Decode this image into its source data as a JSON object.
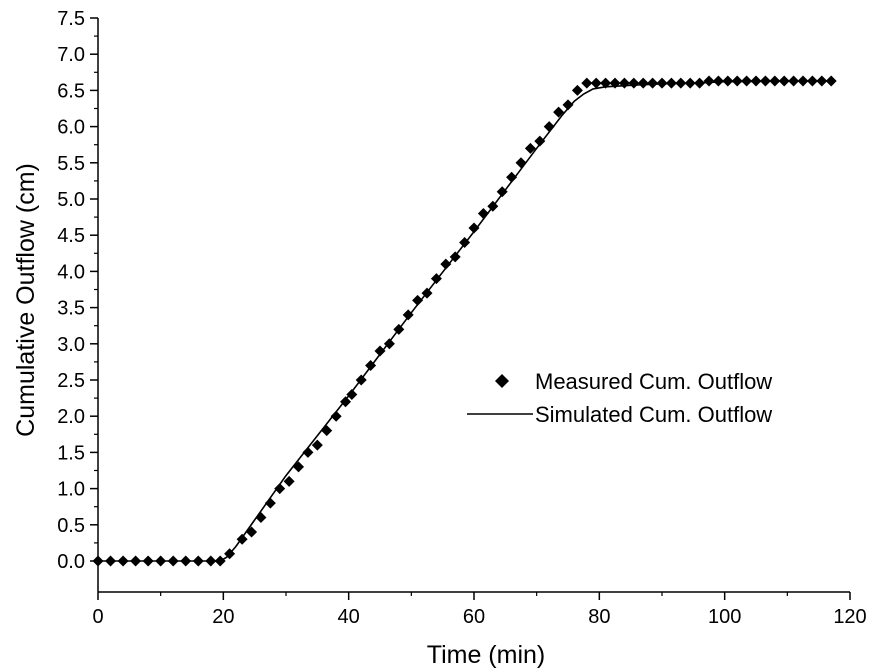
{
  "chart_data": {
    "type": "scatter",
    "title": "",
    "xlabel": "Time (min)",
    "ylabel": "Cumulative Outflow (cm)",
    "xlim": [
      0,
      120
    ],
    "ylim": [
      0,
      7.5
    ],
    "x_ticks": [
      0,
      20,
      40,
      60,
      80,
      100,
      120
    ],
    "x_tick_labels": [
      "0",
      "20",
      "40",
      "60",
      "80",
      "100",
      "120"
    ],
    "y_ticks": [
      0,
      0.5,
      1,
      1.5,
      2,
      2.5,
      3,
      3.5,
      4,
      4.5,
      5,
      5.5,
      6,
      6.5,
      7,
      7.5
    ],
    "y_tick_labels": [
      "0.0",
      "0.5",
      "1.0",
      "1.5",
      "2.0",
      "2.5",
      "3.0",
      "3.5",
      "4.0",
      "4.5",
      "5.0",
      "5.5",
      "6.0",
      "6.5",
      "7.0",
      "7.5"
    ],
    "grid": false,
    "legend_position": "right-center",
    "series": [
      {
        "name": "Measured Cum. Outflow",
        "type": "scatter",
        "marker": "diamond",
        "color": "#000000",
        "points": [
          [
            0,
            0
          ],
          [
            2,
            0
          ],
          [
            4,
            0
          ],
          [
            6,
            0
          ],
          [
            8,
            0
          ],
          [
            10,
            0
          ],
          [
            12,
            0
          ],
          [
            14,
            0
          ],
          [
            16,
            0
          ],
          [
            18,
            0
          ],
          [
            19.5,
            0
          ],
          [
            21,
            0.1
          ],
          [
            23,
            0.3
          ],
          [
            24.5,
            0.4
          ],
          [
            26,
            0.6
          ],
          [
            27.5,
            0.8
          ],
          [
            29,
            1.0
          ],
          [
            30.5,
            1.1
          ],
          [
            32,
            1.3
          ],
          [
            33.5,
            1.5
          ],
          [
            35,
            1.6
          ],
          [
            36.5,
            1.8
          ],
          [
            38,
            2.0
          ],
          [
            39.5,
            2.2
          ],
          [
            40.5,
            2.3
          ],
          [
            42,
            2.5
          ],
          [
            43.5,
            2.7
          ],
          [
            45,
            2.9
          ],
          [
            46.5,
            3.0
          ],
          [
            48,
            3.2
          ],
          [
            49.5,
            3.4
          ],
          [
            51,
            3.6
          ],
          [
            52.5,
            3.7
          ],
          [
            54,
            3.9
          ],
          [
            55.5,
            4.1
          ],
          [
            57,
            4.2
          ],
          [
            58.5,
            4.4
          ],
          [
            60,
            4.6
          ],
          [
            61.5,
            4.8
          ],
          [
            63,
            4.9
          ],
          [
            64.5,
            5.1
          ],
          [
            66,
            5.3
          ],
          [
            67.5,
            5.5
          ],
          [
            69,
            5.7
          ],
          [
            70.5,
            5.8
          ],
          [
            72,
            6.0
          ],
          [
            73.5,
            6.2
          ],
          [
            75,
            6.3
          ],
          [
            76.5,
            6.5
          ],
          [
            78,
            6.6
          ],
          [
            79.5,
            6.6
          ],
          [
            81,
            6.6
          ],
          [
            82.5,
            6.6
          ],
          [
            84,
            6.6
          ],
          [
            85.5,
            6.6
          ],
          [
            87,
            6.6
          ],
          [
            88.5,
            6.6
          ],
          [
            90,
            6.6
          ],
          [
            91.5,
            6.6
          ],
          [
            93,
            6.6
          ],
          [
            94.5,
            6.6
          ],
          [
            96,
            6.6
          ],
          [
            97.5,
            6.63
          ],
          [
            99,
            6.63
          ],
          [
            100.5,
            6.63
          ],
          [
            102,
            6.63
          ],
          [
            103.5,
            6.63
          ],
          [
            105,
            6.63
          ],
          [
            106.5,
            6.63
          ],
          [
            108,
            6.63
          ],
          [
            109.5,
            6.63
          ],
          [
            111,
            6.63
          ],
          [
            112.5,
            6.63
          ],
          [
            114,
            6.63
          ],
          [
            115.5,
            6.63
          ],
          [
            117,
            6.63
          ]
        ]
      },
      {
        "name": "Simulated Cum. Outflow",
        "type": "line",
        "color": "#000000",
        "points": [
          [
            0,
            0
          ],
          [
            19.5,
            0
          ],
          [
            20.5,
            0.05
          ],
          [
            22,
            0.2
          ],
          [
            30,
            1.18
          ],
          [
            40,
            2.28
          ],
          [
            50,
            3.43
          ],
          [
            60,
            4.55
          ],
          [
            70,
            5.7
          ],
          [
            74,
            6.15
          ],
          [
            76,
            6.35
          ],
          [
            77.5,
            6.45
          ],
          [
            79,
            6.52
          ],
          [
            81,
            6.55
          ],
          [
            85,
            6.57
          ],
          [
            90,
            6.59
          ],
          [
            95,
            6.6
          ],
          [
            100,
            6.62
          ],
          [
            110,
            6.63
          ],
          [
            117,
            6.63
          ]
        ]
      }
    ]
  }
}
